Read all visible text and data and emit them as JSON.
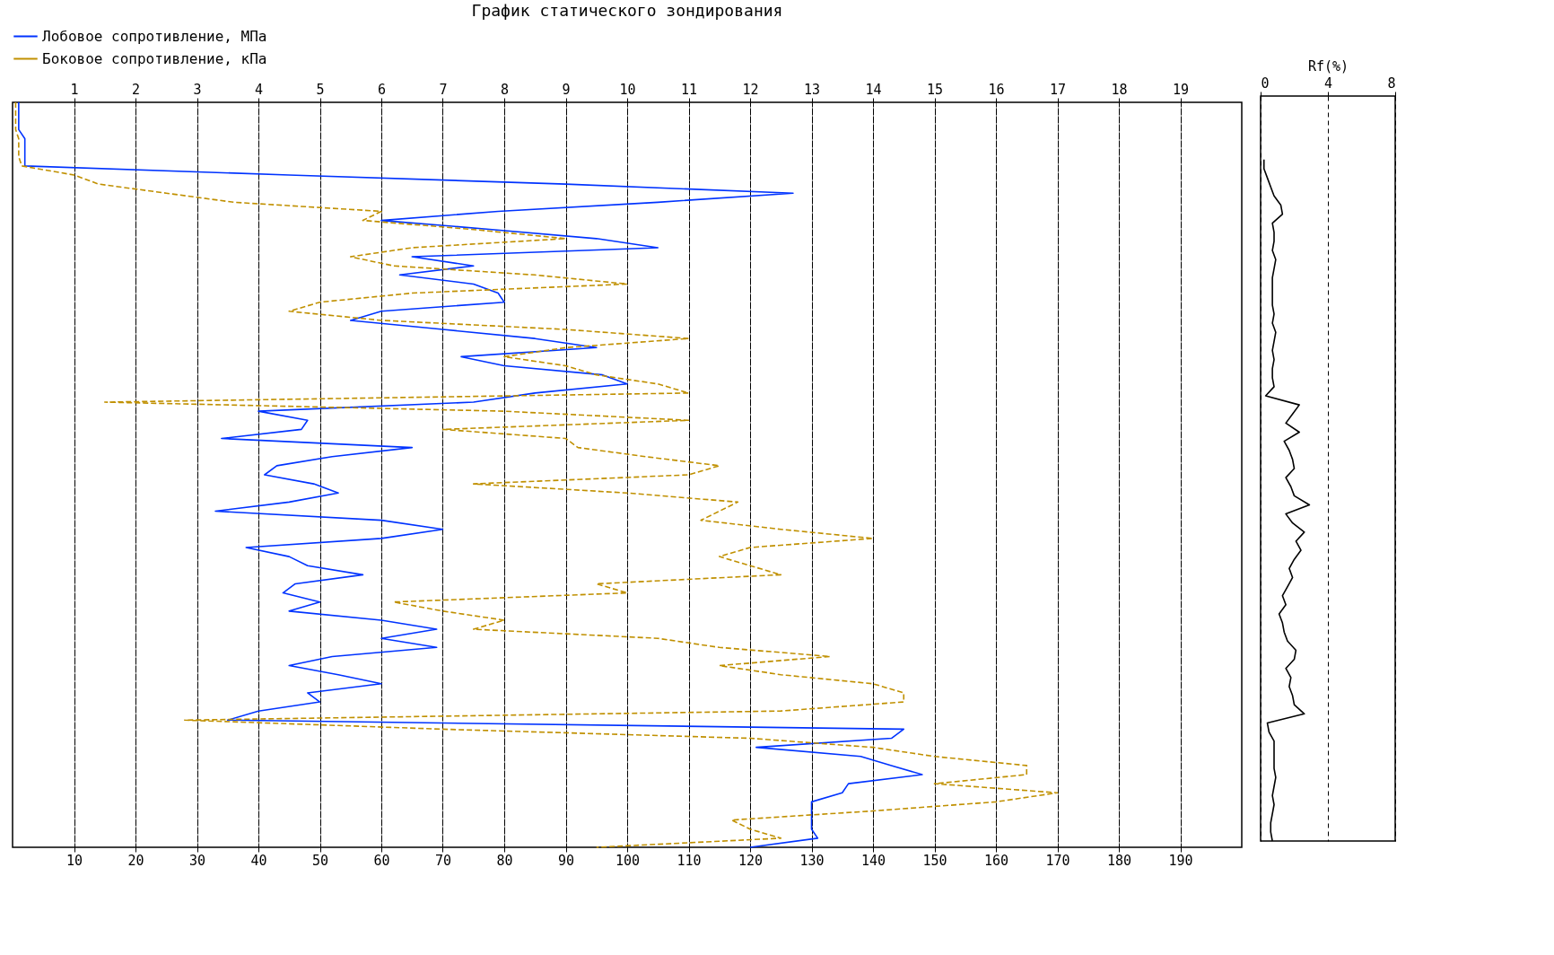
{
  "chart_data": [
    {
      "type": "line",
      "orientation": "horizontal",
      "title": "График статического зондирования",
      "categories": [
        null,
        null,
        null,
        null,
        null,
        null,
        null,
        null,
        null,
        null,
        null,
        null,
        null,
        null,
        null,
        null,
        null,
        null,
        null,
        null,
        null,
        null,
        null,
        null,
        null,
        null,
        null,
        null,
        null,
        null,
        null,
        null,
        null,
        null,
        null,
        null,
        null,
        null,
        null,
        null,
        null,
        null,
        null,
        null,
        null,
        null,
        null,
        null,
        null,
        null,
        null,
        null,
        null,
        null,
        null,
        null,
        null,
        null,
        null,
        null,
        null,
        null,
        null,
        null,
        null,
        null,
        null,
        null,
        null,
        null,
        null,
        null,
        null,
        null,
        null,
        null,
        null,
        null,
        null,
        null,
        null,
        null,
        null
      ],
      "xlim": [
        0,
        200
      ],
      "xticks": [
        10,
        20,
        30,
        40,
        50,
        60,
        70,
        80,
        90,
        100,
        110,
        120,
        130,
        140,
        150,
        160,
        170,
        180,
        190
      ],
      "x2lim": [
        0,
        20
      ],
      "x2ticks": [
        1,
        2,
        3,
        4,
        5,
        6,
        7,
        8,
        9,
        10,
        11,
        12,
        13,
        14,
        15,
        16,
        17,
        18,
        19
      ],
      "grid": "x",
      "legend": "top left",
      "tick_labels": "x",
      "series": [
        {
          "name": "Лобовое сопротивление, МПа",
          "color": "#0033ff",
          "axis": "x2",
          "line_style": "solid",
          "values": [
            0.1,
            0.1,
            0.1,
            0.1,
            0.2,
            0.2,
            0.2,
            0.2,
            4.5,
            9,
            12.7,
            10.5,
            7.9,
            6.0,
            7.8,
            9.5,
            10.5,
            6.5,
            7.5,
            6.3,
            7.5,
            7.9,
            8.0,
            6.0,
            5.5,
            7.0,
            8.5,
            9.5,
            7.3,
            8.0,
            9.6,
            10.0,
            8.5,
            7.5,
            4.0,
            4.8,
            4.7,
            3.4,
            6.5,
            5.2,
            4.3,
            4.1,
            4.9,
            5.3,
            4.5,
            3.3,
            6.0,
            7.0,
            6.0,
            3.8,
            4.5,
            4.8,
            5.7,
            4.6,
            4.4,
            5.0,
            4.5,
            6.0,
            6.9,
            6.0,
            6.9,
            5.2,
            4.5,
            5.3,
            6.0,
            4.8,
            5.0,
            4.0,
            3.5,
            14.5,
            14.3,
            12.1,
            13.8,
            14.3,
            14.8,
            13.6,
            13.5,
            13.0,
            13.0,
            13.0,
            13.0,
            13.1,
            12.0
          ]
        },
        {
          "name": "Боковое сопротивление, кПа",
          "color": "#c09000",
          "line_style": "dashed",
          "values": [
            0.5,
            0.5,
            0.5,
            0.5,
            1,
            1,
            1,
            1.5,
            10,
            14,
            25,
            36,
            60,
            57,
            75,
            90,
            65,
            55,
            62,
            85,
            100,
            65,
            50,
            45,
            60,
            90,
            110,
            90,
            80,
            90,
            95,
            105,
            110,
            15,
            80,
            110,
            70,
            90,
            92,
            103,
            115,
            110,
            75,
            100,
            118,
            115,
            112,
            125,
            140,
            120,
            115,
            120,
            125,
            95,
            100,
            62,
            70,
            80,
            75,
            105,
            115,
            133,
            115,
            125,
            140,
            145,
            145,
            125,
            28,
            70,
            120,
            140,
            150,
            165,
            165,
            150,
            170,
            160,
            140,
            117,
            120,
            125,
            95
          ]
        }
      ]
    },
    {
      "type": "line",
      "orientation": "horizontal",
      "xlabel": "Rf(%)",
      "categories": [
        null,
        null,
        null,
        null,
        null,
        null,
        null,
        null,
        null,
        null,
        null,
        null,
        null,
        null,
        null,
        null,
        null,
        null,
        null,
        null,
        null,
        null,
        null,
        null,
        null,
        null,
        null,
        null,
        null,
        null,
        null,
        null,
        null,
        null,
        null,
        null,
        null,
        null,
        null,
        null,
        null,
        null,
        null,
        null,
        null,
        null,
        null,
        null,
        null,
        null,
        null,
        null,
        null,
        null,
        null,
        null,
        null,
        null,
        null,
        null,
        null,
        null,
        null,
        null,
        null,
        null,
        null,
        null,
        null,
        null,
        null,
        null,
        null,
        null,
        null,
        null,
        null,
        null,
        null,
        null,
        null,
        null,
        null
      ],
      "xlim": [
        0,
        8
      ],
      "xticks": [
        0,
        4,
        8
      ],
      "grid": "x",
      "tick_labels": "x",
      "series": [
        {
          "color": "#000000",
          "line_style": "solid",
          "values": [
            null,
            null,
            null,
            null,
            null,
            null,
            null,
            0.2,
            0.2,
            0.4,
            0.6,
            0.8,
            1.2,
            1.3,
            0.7,
            0.8,
            0.8,
            0.7,
            0.9,
            0.8,
            0.7,
            0.7,
            0.7,
            0.7,
            0.8,
            0.7,
            0.9,
            0.8,
            0.7,
            0.8,
            0.7,
            0.7,
            0.8,
            0.3,
            2.3,
            1.9,
            1.5,
            2.3,
            1.4,
            1.7,
            1.9,
            2.0,
            1.5,
            1.8,
            2.0,
            2.9,
            1.5,
            1.9,
            2.6,
            2.1,
            2.4,
            2.0,
            1.7,
            1.9,
            1.6,
            1.3,
            1.5,
            1.1,
            1.3,
            1.4,
            1.6,
            2.1,
            2.0,
            1.5,
            1.8,
            1.7,
            1.9,
            2.0,
            2.6,
            0.4,
            0.5,
            0.8,
            0.8,
            0.8,
            0.8,
            0.9,
            0.8,
            0.7,
            0.8,
            0.7,
            0.6,
            0.6,
            0.7
          ]
        }
      ]
    }
  ]
}
